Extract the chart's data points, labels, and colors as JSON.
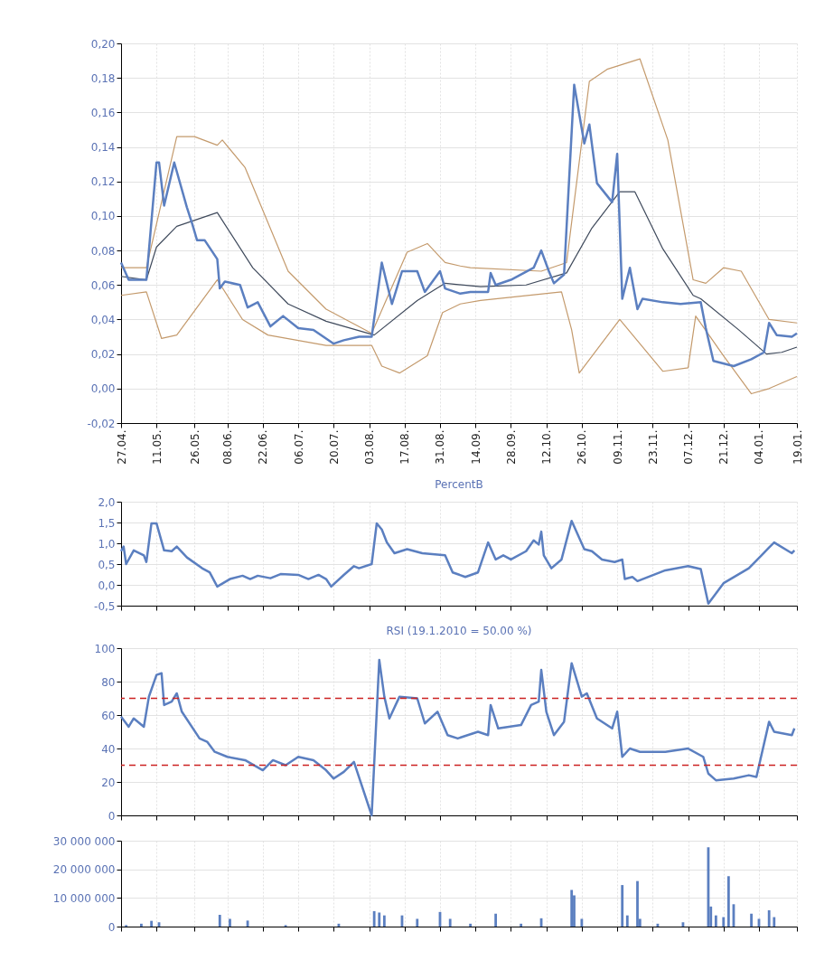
{
  "chart_data": [
    {
      "type": "line",
      "xlim": [
        "2009-04-27",
        "2010-01-19"
      ],
      "ylim": [
        -0.02,
        0.2
      ],
      "grid": true,
      "xticks": [
        {
          "value": "2009-04-27",
          "label": "27.04."
        },
        {
          "value": "2009-05-11",
          "label": "11.05."
        },
        {
          "value": "2009-05-26",
          "label": "26.05."
        },
        {
          "value": "2009-06-08",
          "label": "08.06."
        },
        {
          "value": "2009-06-22",
          "label": "22.06."
        },
        {
          "value": "2009-07-06",
          "label": "06.07."
        },
        {
          "value": "2009-07-20",
          "label": "20.07."
        },
        {
          "value": "2009-08-03",
          "label": "03.08."
        },
        {
          "value": "2009-08-17",
          "label": "17.08."
        },
        {
          "value": "2009-08-31",
          "label": "31.08."
        },
        {
          "value": "2009-09-14",
          "label": "14.09."
        },
        {
          "value": "2009-09-28",
          "label": "28.09."
        },
        {
          "value": "2009-10-12",
          "label": "12.10."
        },
        {
          "value": "2009-10-26",
          "label": "26.10."
        },
        {
          "value": "2009-11-09",
          "label": "09.11."
        },
        {
          "value": "2009-11-23",
          "label": "23.11."
        },
        {
          "value": "2009-12-07",
          "label": "07.12."
        },
        {
          "value": "2009-12-21",
          "label": "21.12."
        },
        {
          "value": "2010-01-04",
          "label": "04.01."
        },
        {
          "value": "2010-01-19",
          "label": "19.01."
        }
      ],
      "yticks": [
        {
          "value": -0.02,
          "label": "-0,02"
        },
        {
          "value": 0,
          "label": "0,00"
        },
        {
          "value": 0.02,
          "label": "0,02"
        },
        {
          "value": 0.04,
          "label": "0,04"
        },
        {
          "value": 0.06,
          "label": "0,06"
        },
        {
          "value": 0.08,
          "label": "0,08"
        },
        {
          "value": 0.1,
          "label": "0,10"
        },
        {
          "value": 0.12,
          "label": "0,12"
        },
        {
          "value": 0.14,
          "label": "0,14"
        },
        {
          "value": 0.16,
          "label": "0,16"
        },
        {
          "value": 0.18,
          "label": "0,18"
        },
        {
          "value": 0.2,
          "label": "0,20"
        }
      ],
      "series": [
        {
          "color": "#c49a6c",
          "x": [
            "2009-04-27",
            "2009-05-07",
            "2009-05-19",
            "2009-05-26",
            "2009-06-04",
            "2009-06-06",
            "2009-06-15",
            "2009-07-02",
            "2009-07-17",
            "2009-08-04",
            "2009-08-18",
            "2009-08-26",
            "2009-09-02",
            "2009-09-08",
            "2009-09-12",
            "2009-10-10",
            "2009-10-20",
            "2009-10-29",
            "2009-11-05",
            "2009-11-18",
            "2009-11-29",
            "2009-12-09",
            "2009-12-14",
            "2009-12-21",
            "2009-12-28",
            "2010-01-08",
            "2010-01-19"
          ],
          "values": [
            0.07,
            0.07,
            0.146,
            0.146,
            0.141,
            0.144,
            0.128,
            0.068,
            0.046,
            0.032,
            0.079,
            0.084,
            0.073,
            0.071,
            0.07,
            0.068,
            0.073,
            0.178,
            0.185,
            0.191,
            0.144,
            0.063,
            0.061,
            0.07,
            0.068,
            0.04,
            0.038
          ]
        },
        {
          "color": "#c49a6c",
          "x": [
            "2009-04-27",
            "2009-05-07",
            "2009-05-13",
            "2009-05-19",
            "2009-06-04",
            "2009-06-14",
            "2009-06-24",
            "2009-07-17",
            "2009-08-04",
            "2009-08-08",
            "2009-08-15",
            "2009-08-26",
            "2009-09-01",
            "2009-09-08",
            "2009-09-16",
            "2009-10-18",
            "2009-10-22",
            "2009-10-25",
            "2009-11-10",
            "2009-11-27",
            "2009-12-07",
            "2009-12-10",
            "2009-12-21",
            "2010-01-01",
            "2010-01-08",
            "2010-01-19"
          ],
          "values": [
            0.054,
            0.056,
            0.029,
            0.031,
            0.063,
            0.04,
            0.031,
            0.025,
            0.025,
            0.013,
            0.009,
            0.019,
            0.044,
            0.049,
            0.051,
            0.056,
            0.034,
            0.009,
            0.04,
            0.01,
            0.012,
            0.042,
            0.019,
            -0.003,
            0.0,
            0.007
          ]
        },
        {
          "color": "#3f4a5c",
          "x": [
            "2009-04-27",
            "2009-05-07",
            "2009-05-11",
            "2009-05-19",
            "2009-06-04",
            "2009-06-18",
            "2009-07-02",
            "2009-07-17",
            "2009-08-05",
            "2009-08-22",
            "2009-09-02",
            "2009-09-16",
            "2009-10-04",
            "2009-10-20",
            "2009-10-30",
            "2009-11-10",
            "2009-11-16",
            "2009-11-27",
            "2009-12-09",
            "2009-12-12",
            "2009-12-27",
            "2010-01-07",
            "2010-01-13",
            "2010-01-19"
          ],
          "values": [
            0.065,
            0.063,
            0.082,
            0.094,
            0.102,
            0.07,
            0.049,
            0.039,
            0.031,
            0.051,
            0.061,
            0.059,
            0.06,
            0.067,
            0.093,
            0.114,
            0.114,
            0.081,
            0.054,
            0.052,
            0.034,
            0.02,
            0.021,
            0.024
          ]
        },
        {
          "color": "#5b7fc0",
          "x": [
            "2009-04-27",
            "2009-04-30",
            "2009-05-07",
            "2009-05-11",
            "2009-05-12",
            "2009-05-14",
            "2009-05-18",
            "2009-05-23",
            "2009-05-25",
            "2009-05-27",
            "2009-05-30",
            "2009-06-04",
            "2009-06-05",
            "2009-06-07",
            "2009-06-13",
            "2009-06-16",
            "2009-06-20",
            "2009-06-25",
            "2009-06-30",
            "2009-07-06",
            "2009-07-12",
            "2009-07-20",
            "2009-07-24",
            "2009-07-30",
            "2009-08-04",
            "2009-08-08",
            "2009-08-10",
            "2009-08-12",
            "2009-08-16",
            "2009-08-22",
            "2009-08-25",
            "2009-08-31",
            "2009-09-02",
            "2009-09-08",
            "2009-09-12",
            "2009-09-19",
            "2009-09-20",
            "2009-09-22",
            "2009-09-28",
            "2009-10-07",
            "2009-10-10",
            "2009-10-13",
            "2009-10-15",
            "2009-10-19",
            "2009-10-23",
            "2009-10-27",
            "2009-10-29",
            "2009-11-01",
            "2009-11-07",
            "2009-11-09",
            "2009-11-11",
            "2009-11-14",
            "2009-11-17",
            "2009-11-19",
            "2009-11-27",
            "2009-12-04",
            "2009-12-12",
            "2009-12-14",
            "2009-12-17",
            "2009-12-25",
            "2010-01-01",
            "2010-01-06",
            "2010-01-08",
            "2010-01-11",
            "2010-01-17",
            "2010-01-19"
          ],
          "values": [
            0.073,
            0.063,
            0.063,
            0.131,
            0.131,
            0.106,
            0.131,
            0.105,
            0.096,
            0.086,
            0.086,
            0.075,
            0.058,
            0.062,
            0.06,
            0.047,
            0.05,
            0.036,
            0.042,
            0.035,
            0.034,
            0.026,
            0.028,
            0.03,
            0.03,
            0.073,
            0.061,
            0.049,
            0.068,
            0.068,
            0.056,
            0.068,
            0.058,
            0.055,
            0.056,
            0.056,
            0.067,
            0.06,
            0.063,
            0.07,
            0.08,
            0.068,
            0.061,
            0.066,
            0.176,
            0.142,
            0.153,
            0.119,
            0.108,
            0.136,
            0.052,
            0.07,
            0.046,
            0.052,
            0.05,
            0.049,
            0.05,
            0.035,
            0.016,
            0.013,
            0.017,
            0.021,
            0.038,
            0.031,
            0.03,
            0.032
          ]
        }
      ]
    },
    {
      "type": "line",
      "title": "PercentB",
      "tick_labels": "y",
      "xlim": [
        "2009-04-27",
        "2010-01-19"
      ],
      "ylim": [
        -0.5,
        2.0
      ],
      "grid": true,
      "xticks": [
        {
          "value": "2009-04-27",
          "label": null
        },
        {
          "value": "2009-05-11",
          "label": null
        },
        {
          "value": "2009-05-26",
          "label": null
        },
        {
          "value": "2009-06-08",
          "label": null
        },
        {
          "value": "2009-06-22",
          "label": null
        },
        {
          "value": "2009-07-06",
          "label": null
        },
        {
          "value": "2009-07-20",
          "label": null
        },
        {
          "value": "2009-08-03",
          "label": null
        },
        {
          "value": "2009-08-17",
          "label": null
        },
        {
          "value": "2009-08-31",
          "label": null
        },
        {
          "value": "2009-09-14",
          "label": null
        },
        {
          "value": "2009-09-28",
          "label": null
        },
        {
          "value": "2009-10-12",
          "label": null
        },
        {
          "value": "2009-10-26",
          "label": null
        },
        {
          "value": "2009-11-09",
          "label": null
        },
        {
          "value": "2009-11-23",
          "label": null
        },
        {
          "value": "2009-12-07",
          "label": null
        },
        {
          "value": "2009-12-21",
          "label": null
        },
        {
          "value": "2010-01-04",
          "label": null
        },
        {
          "value": "2010-01-19",
          "label": null
        }
      ],
      "yticks": [
        {
          "value": -0.5,
          "label": "-0,5"
        },
        {
          "value": 0,
          "label": "0,0"
        },
        {
          "value": 0.5,
          "label": "0,5"
        },
        {
          "value": 1.0,
          "label": "1,0"
        },
        {
          "value": 1.5,
          "label": "1,5"
        },
        {
          "value": 2.0,
          "label": "2,0"
        }
      ],
      "series": [
        {
          "color": "#5b7fc0",
          "x": [
            "2009-04-27",
            "2009-04-28",
            "2009-04-29",
            "2009-05-02",
            "2009-05-06",
            "2009-05-07",
            "2009-05-09",
            "2009-05-11",
            "2009-05-14",
            "2009-05-17",
            "2009-05-19",
            "2009-05-23",
            "2009-05-29",
            "2009-06-01",
            "2009-06-04",
            "2009-06-09",
            "2009-06-14",
            "2009-06-17",
            "2009-06-20",
            "2009-06-25",
            "2009-06-29",
            "2009-07-06",
            "2009-07-10",
            "2009-07-14",
            "2009-07-17",
            "2009-07-19",
            "2009-07-24",
            "2009-07-28",
            "2009-07-30",
            "2009-08-04",
            "2009-08-06",
            "2009-08-08",
            "2009-08-10",
            "2009-08-13",
            "2009-08-18",
            "2009-08-24",
            "2009-09-02",
            "2009-09-05",
            "2009-09-10",
            "2009-09-15",
            "2009-09-19",
            "2009-09-22",
            "2009-09-25",
            "2009-09-28",
            "2009-10-04",
            "2009-10-07",
            "2009-10-09",
            "2009-10-10",
            "2009-10-11",
            "2009-10-14",
            "2009-10-18",
            "2009-10-22",
            "2009-10-27",
            "2009-10-30",
            "2009-11-03",
            "2009-11-08",
            "2009-11-11",
            "2009-11-12",
            "2009-11-15",
            "2009-11-17",
            "2009-11-28",
            "2009-12-07",
            "2009-12-12",
            "2009-12-15",
            "2009-12-21",
            "2009-12-31",
            "2010-01-05",
            "2010-01-08",
            "2010-01-10",
            "2010-01-17",
            "2010-01-18"
          ],
          "values": [
            0.81,
            0.92,
            0.5,
            0.83,
            0.71,
            0.55,
            1.48,
            1.48,
            0.83,
            0.81,
            0.92,
            0.66,
            0.4,
            0.3,
            -0.04,
            0.14,
            0.22,
            0.14,
            0.22,
            0.16,
            0.26,
            0.24,
            0.14,
            0.24,
            0.14,
            -0.04,
            0.24,
            0.45,
            0.4,
            0.5,
            1.48,
            1.33,
            1.02,
            0.76,
            0.86,
            0.76,
            0.71,
            0.3,
            0.19,
            0.3,
            1.02,
            0.61,
            0.71,
            0.61,
            0.81,
            1.07,
            0.97,
            1.28,
            0.71,
            0.4,
            0.61,
            1.54,
            0.86,
            0.81,
            0.61,
            0.55,
            0.61,
            0.14,
            0.19,
            0.09,
            0.35,
            0.45,
            0.38,
            -0.45,
            0.04,
            0.4,
            0.71,
            0.9,
            1.02,
            0.76,
            0.83
          ]
        }
      ]
    },
    {
      "type": "line",
      "title": "RSI (19.1.2010 = 50.00 %)",
      "tick_labels": "y",
      "xlim": [
        "2009-04-27",
        "2010-01-19"
      ],
      "ylim": [
        0,
        100
      ],
      "grid": true,
      "xticks": [
        {
          "value": "2009-04-27",
          "label": null
        },
        {
          "value": "2009-05-11",
          "label": null
        },
        {
          "value": "2009-05-26",
          "label": null
        },
        {
          "value": "2009-06-08",
          "label": null
        },
        {
          "value": "2009-06-22",
          "label": null
        },
        {
          "value": "2009-07-06",
          "label": null
        },
        {
          "value": "2009-07-20",
          "label": null
        },
        {
          "value": "2009-08-03",
          "label": null
        },
        {
          "value": "2009-08-17",
          "label": null
        },
        {
          "value": "2009-08-31",
          "label": null
        },
        {
          "value": "2009-09-14",
          "label": null
        },
        {
          "value": "2009-09-28",
          "label": null
        },
        {
          "value": "2009-10-12",
          "label": null
        },
        {
          "value": "2009-10-26",
          "label": null
        },
        {
          "value": "2009-11-09",
          "label": null
        },
        {
          "value": "2009-11-23",
          "label": null
        },
        {
          "value": "2009-12-07",
          "label": null
        },
        {
          "value": "2009-12-21",
          "label": null
        },
        {
          "value": "2010-01-04",
          "label": null
        },
        {
          "value": "2010-01-19",
          "label": null
        }
      ],
      "yticks": [
        0,
        20,
        40,
        60,
        80,
        100
      ],
      "ref_lines": [
        {
          "axis": "y",
          "value": 70,
          "color": "#cc2222",
          "line_style": "dashed"
        },
        {
          "axis": "y",
          "value": 30,
          "color": "#cc2222",
          "line_style": "dashed"
        }
      ],
      "series": [
        {
          "color": "#5b7fc0",
          "x": [
            "2009-04-27",
            "2009-04-30",
            "2009-05-02",
            "2009-05-06",
            "2009-05-08",
            "2009-05-11",
            "2009-05-13",
            "2009-05-14",
            "2009-05-17",
            "2009-05-19",
            "2009-05-21",
            "2009-05-28",
            "2009-05-31",
            "2009-06-03",
            "2009-06-08",
            "2009-06-15",
            "2009-06-22",
            "2009-06-26",
            "2009-07-01",
            "2009-07-06",
            "2009-07-12",
            "2009-07-17",
            "2009-07-20",
            "2009-07-24",
            "2009-07-28",
            "2009-08-04",
            "2009-08-07",
            "2009-08-09",
            "2009-08-11",
            "2009-08-15",
            "2009-08-22",
            "2009-08-24",
            "2009-08-25",
            "2009-08-30",
            "2009-09-03",
            "2009-09-07",
            "2009-09-15",
            "2009-09-19",
            "2009-09-20",
            "2009-09-23",
            "2009-10-02",
            "2009-10-06",
            "2009-10-09",
            "2009-10-10",
            "2009-10-12",
            "2009-10-15",
            "2009-10-19",
            "2009-10-22",
            "2009-10-26",
            "2009-10-28",
            "2009-11-01",
            "2009-11-07",
            "2009-11-09",
            "2009-11-11",
            "2009-11-14",
            "2009-11-18",
            "2009-11-28",
            "2009-12-07",
            "2009-12-13",
            "2009-12-15",
            "2009-12-18",
            "2009-12-25",
            "2009-12-31",
            "2010-01-03",
            "2010-01-08",
            "2010-01-10",
            "2010-01-17",
            "2010-01-18"
          ],
          "values": [
            59,
            53,
            58,
            53,
            71,
            84,
            85,
            66,
            68,
            73,
            62,
            46,
            44,
            38,
            35,
            33,
            27,
            33,
            30,
            35,
            33,
            27,
            22,
            26,
            32,
            0,
            93,
            71,
            58,
            71,
            70,
            60,
            55,
            62,
            48,
            46,
            50,
            48,
            66,
            52,
            54,
            66,
            68,
            87,
            62,
            48,
            56,
            91,
            71,
            73,
            58,
            52,
            62,
            35,
            40,
            38,
            38,
            40,
            35,
            25,
            21,
            22,
            24,
            23,
            56,
            50,
            48,
            52
          ]
        }
      ]
    },
    {
      "type": "bar",
      "tick_labels": "y",
      "xlim": [
        "2009-04-27",
        "2010-01-19"
      ],
      "ylim": [
        0,
        30000000
      ],
      "grid": true,
      "xticks": [
        {
          "value": "2009-04-27",
          "label": null
        },
        {
          "value": "2009-05-11",
          "label": null
        },
        {
          "value": "2009-05-26",
          "label": null
        },
        {
          "value": "2009-06-08",
          "label": null
        },
        {
          "value": "2009-06-22",
          "label": null
        },
        {
          "value": "2009-07-06",
          "label": null
        },
        {
          "value": "2009-07-20",
          "label": null
        },
        {
          "value": "2009-08-03",
          "label": null
        },
        {
          "value": "2009-08-17",
          "label": null
        },
        {
          "value": "2009-08-31",
          "label": null
        },
        {
          "value": "2009-09-14",
          "label": null
        },
        {
          "value": "2009-09-28",
          "label": null
        },
        {
          "value": "2009-10-12",
          "label": null
        },
        {
          "value": "2009-10-26",
          "label": null
        },
        {
          "value": "2009-11-09",
          "label": null
        },
        {
          "value": "2009-11-23",
          "label": null
        },
        {
          "value": "2009-12-07",
          "label": null
        },
        {
          "value": "2009-12-21",
          "label": null
        },
        {
          "value": "2010-01-04",
          "label": null
        },
        {
          "value": "2010-01-19",
          "label": null
        }
      ],
      "yticks": [
        {
          "value": 0,
          "label": "0"
        },
        {
          "value": 10000000,
          "label": "10 000 000"
        },
        {
          "value": 20000000,
          "label": "20 000 000"
        },
        {
          "value": 30000000,
          "label": "30 000 000"
        }
      ],
      "series": [
        {
          "color": "#5b7fc0",
          "x": [
            "2009-04-29",
            "2009-05-05",
            "2009-05-09",
            "2009-05-12",
            "2009-06-05",
            "2009-06-09",
            "2009-06-16",
            "2009-07-01",
            "2009-07-22",
            "2009-08-05",
            "2009-08-07",
            "2009-08-09",
            "2009-08-16",
            "2009-08-22",
            "2009-08-31",
            "2009-09-04",
            "2009-09-12",
            "2009-09-22",
            "2009-10-02",
            "2009-10-10",
            "2009-10-22",
            "2009-10-23",
            "2009-10-26",
            "2009-11-11",
            "2009-11-13",
            "2009-11-17",
            "2009-11-18",
            "2009-11-25",
            "2009-12-05",
            "2009-12-15",
            "2009-12-16",
            "2009-12-18",
            "2009-12-21",
            "2009-12-23",
            "2009-12-25",
            "2010-01-01",
            "2010-01-04",
            "2010-01-08",
            "2010-01-10"
          ],
          "values": [
            500000,
            1000000,
            2000000,
            1500000,
            4100000,
            2700000,
            2100000,
            500000,
            1000000,
            5400000,
            4900000,
            3900000,
            3900000,
            2700000,
            5100000,
            2700000,
            1000000,
            4500000,
            1000000,
            2900000,
            12800000,
            10900000,
            2700000,
            14500000,
            3900000,
            15900000,
            2700000,
            1000000,
            1500000,
            27700000,
            7000000,
            3900000,
            3300000,
            17600000,
            7800000,
            4500000,
            2700000,
            5700000,
            3300000
          ]
        }
      ]
    }
  ]
}
